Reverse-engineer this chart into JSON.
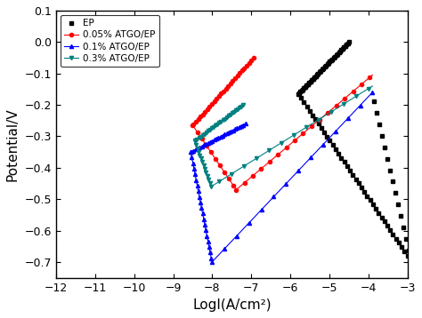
{
  "xlabel": "LogI(A/cm²)",
  "ylabel": "Potential/V",
  "xlim": [
    -12,
    -3
  ],
  "ylim": [
    -0.75,
    0.1
  ],
  "xticks": [
    -12,
    -11,
    -10,
    -9,
    -8,
    -7,
    -6,
    -5,
    -4,
    -3
  ],
  "yticks": [
    0.1,
    0.0,
    -0.1,
    -0.2,
    -0.3,
    -0.4,
    -0.5,
    -0.6,
    -0.7
  ],
  "legend_labels": [
    "EP",
    "0.05% ATGO/EP",
    "0.1% ATGO/EP",
    "0.3% ATGO/EP"
  ],
  "background_color": "#ffffff"
}
